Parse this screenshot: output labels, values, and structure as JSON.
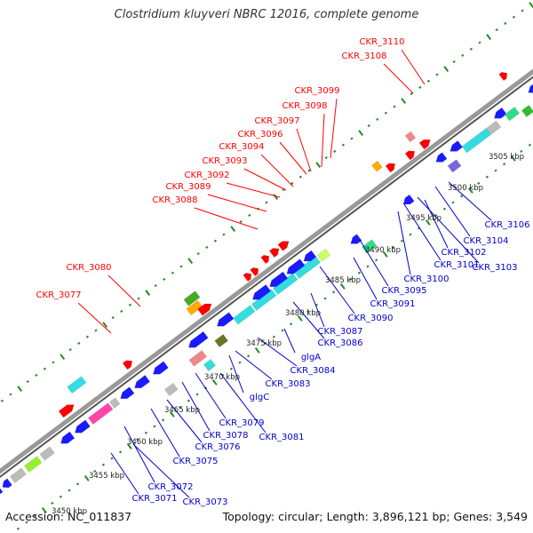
{
  "title": "Clostridium kluyveri NBRC 12016, complete genome",
  "footer": {
    "accession": "Accession: NC_011837",
    "meta": "Topology: circular; Length: 3,896,121 bp; Genes: 3,549"
  },
  "colors": {
    "forward_label": "#ff0000",
    "reverse_label": "#0000cc",
    "backbone": "#888888",
    "tick_major": "#228822",
    "gene_blue": "#1a1aff",
    "gene_red": "#ff0000",
    "gene_cyan": "#33dddd",
    "gene_green": "#33dd88",
    "gene_pink": "#ff44aa",
    "gene_grey": "#bbbbbb"
  },
  "scale_labels": [
    "3450 kbp",
    "3455 kbp",
    "3460 kbp",
    "3465 kbp",
    "3470 kbp",
    "3475 kbp",
    "3480 kbp",
    "3485 kbp",
    "3490 kbp",
    "3495 kbp",
    "3500 kbp",
    "3505 kbp"
  ],
  "forward_gene_labels": [
    "CKR_3110",
    "CKR_3108",
    "CKR_3099",
    "CKR_3098",
    "CKR_3097",
    "CKR_3096",
    "CKR_3094",
    "CKR_3093",
    "CKR_3092",
    "CKR_3089",
    "CKR_3088",
    "CKR_3080",
    "CKR_3077"
  ],
  "reverse_gene_labels": [
    "CKR_3106",
    "CKR_3104",
    "CKR_3102",
    "CKR_3103",
    "CKR_3101",
    "CKR_3100",
    "CKR_3095",
    "CKR_3091",
    "CKR_3090",
    "CKR_3087",
    "CKR_3086",
    "CKR_3084",
    "glgA",
    "CKR_3083",
    "glgC",
    "CKR_3079",
    "CKR_3081",
    "CKR_3078",
    "CKR_3076",
    "CKR_3075",
    "CKR_3072",
    "CKR_3071",
    "CKR_3073"
  ]
}
